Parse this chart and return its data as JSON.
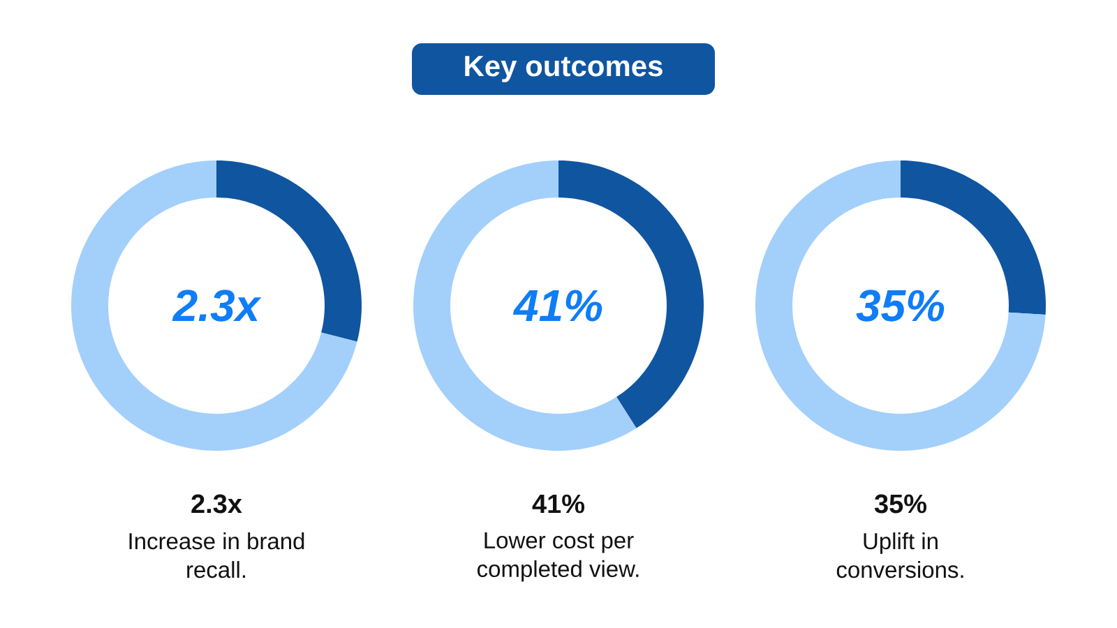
{
  "chart_data": [
    {
      "type": "other",
      "title": "Key outcomes"
    },
    {
      "type": "donut",
      "title": "2.3x",
      "subtitle": "Increase in brand recall.",
      "categories": [
        null,
        null
      ],
      "values": [
        29,
        71
      ],
      "colors": [
        "#1055a0",
        "#a3cffb"
      ],
      "annotations": [
        "2.3x"
      ]
    },
    {
      "type": "donut",
      "title": "41%",
      "subtitle": "Lower cost per completed view.",
      "categories": [
        null,
        null
      ],
      "values": [
        41,
        59
      ],
      "colors": [
        "#1055a0",
        "#a3cffb"
      ],
      "annotations": [
        "41%"
      ]
    },
    {
      "type": "donut",
      "title": "35%",
      "subtitle": "Uplift in conversions.",
      "categories": [
        null,
        null
      ],
      "values": [
        26,
        74
      ],
      "colors": [
        "#1055a0",
        "#a3cffb"
      ],
      "annotations": [
        "35%"
      ]
    }
  ]
}
